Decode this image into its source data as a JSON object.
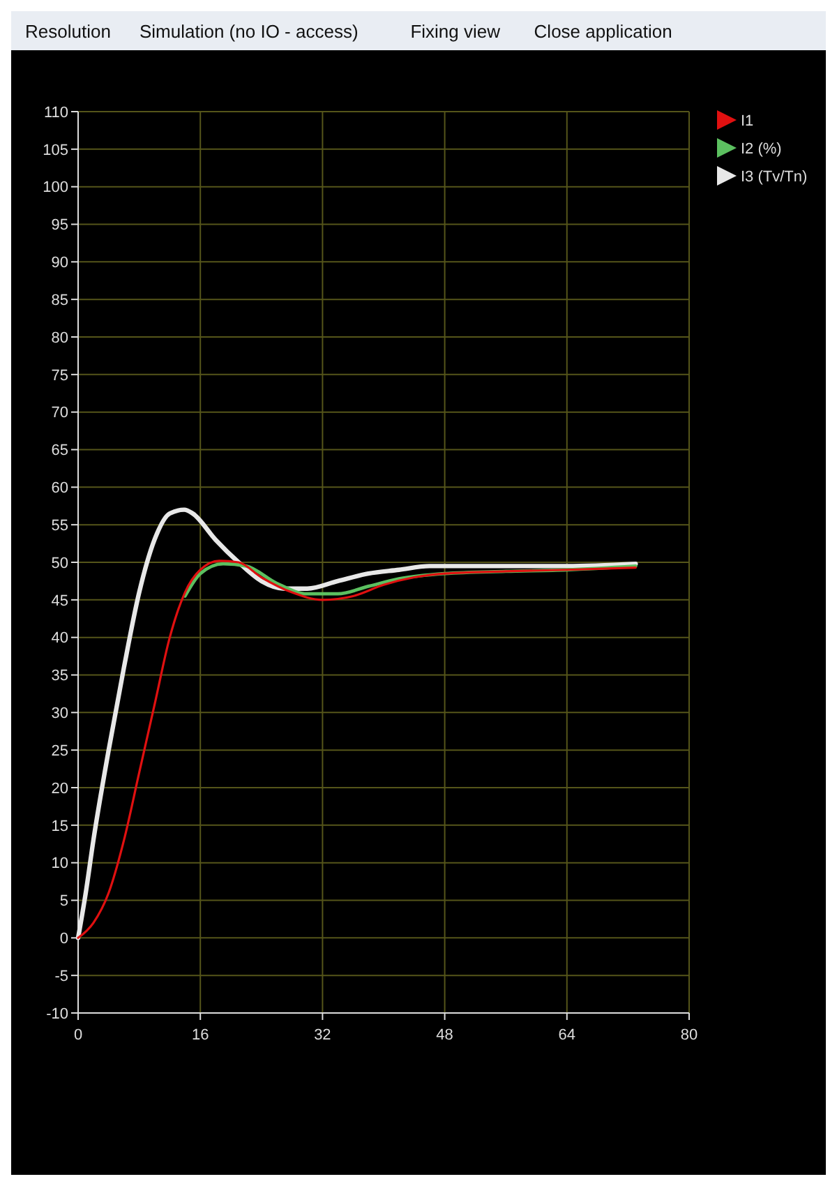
{
  "chart_data": {
    "type": "line",
    "annotations": [
      "Resolution",
      "Simulation (no IO - access)",
      "Fixing view",
      "Close application"
    ],
    "xlim": [
      0,
      80
    ],
    "xticks": [
      0,
      16,
      32,
      48,
      64,
      80
    ],
    "ylim": [
      -10,
      110
    ],
    "yticks": [
      -10,
      -5,
      0,
      5,
      10,
      15,
      20,
      25,
      30,
      35,
      40,
      45,
      50,
      55,
      60,
      65,
      70,
      75,
      80,
      85,
      90,
      95,
      100,
      105,
      110
    ],
    "grid": true,
    "legend": "top right",
    "line_style": "solid",
    "marker": "none",
    "series": [
      {
        "name": "I1",
        "color": "#e01010",
        "x": [
          0,
          2,
          4,
          6,
          8,
          10,
          12,
          14,
          16,
          18.5,
          21,
          24,
          28,
          32,
          36,
          40,
          44,
          48,
          56,
          64,
          73
        ],
        "values": [
          0,
          2,
          6,
          13,
          22,
          31,
          40,
          46,
          49,
          50.2,
          50,
          48,
          46,
          45,
          45.5,
          47,
          48,
          48.5,
          48.8,
          49,
          49.3
        ]
      },
      {
        "name": "I2 (%)",
        "color": "#5cc060",
        "x": [
          14,
          16,
          19,
          22,
          26,
          30,
          34,
          38,
          42,
          48,
          56,
          64,
          73
        ],
        "values": [
          45.5,
          48.5,
          49.8,
          49.5,
          47.2,
          45.8,
          45.8,
          46.8,
          47.8,
          48.5,
          48.8,
          49,
          49.5
        ]
      },
      {
        "name": "I3 (Tv/Tn)",
        "color": "#e8e8e8",
        "x": [
          0,
          1,
          2,
          4,
          6,
          8,
          10,
          12,
          13.9,
          15,
          18,
          21,
          24,
          27,
          30,
          34,
          38,
          42,
          46,
          56,
          64,
          73
        ],
        "values": [
          0,
          6,
          13,
          25,
          36,
          46,
          53,
          56.5,
          57,
          56.5,
          53,
          50,
          47.5,
          46.5,
          46.5,
          47.5,
          48.5,
          49,
          49.5,
          49.5,
          49.5,
          49.8
        ]
      }
    ]
  }
}
